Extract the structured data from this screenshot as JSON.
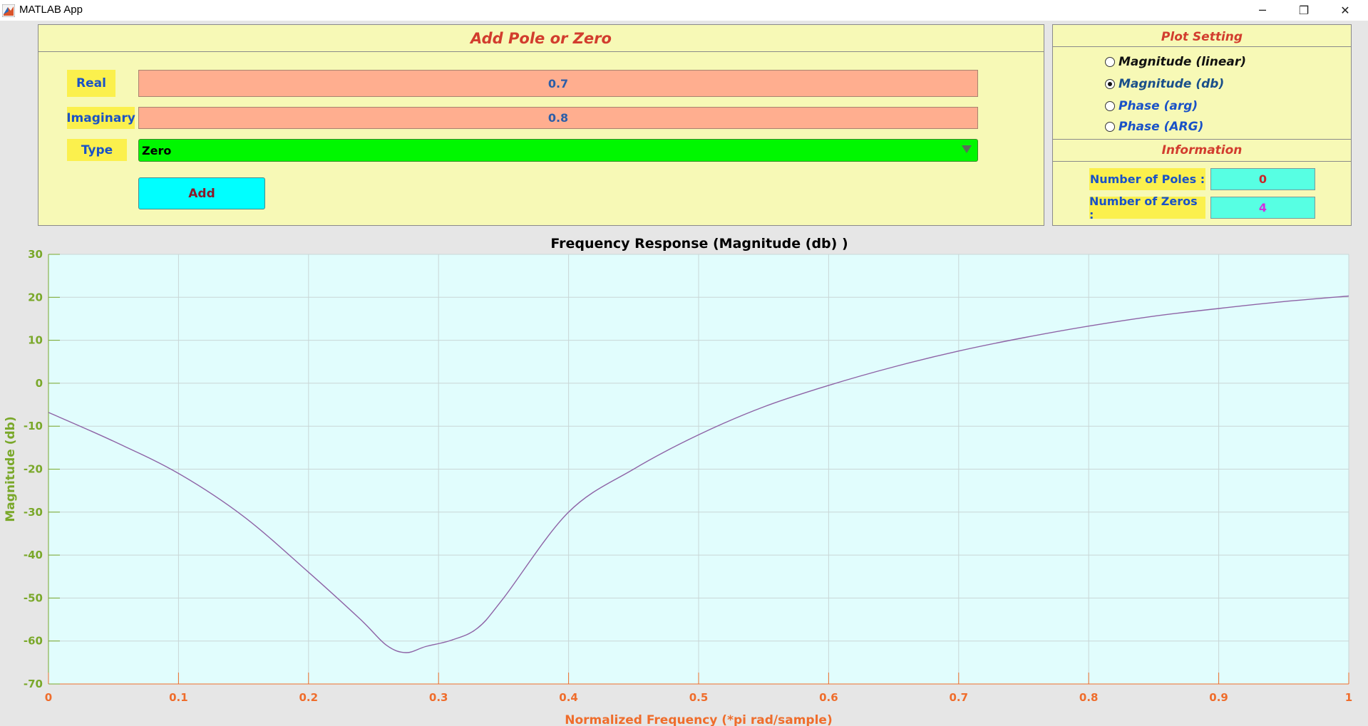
{
  "window": {
    "title": "MATLAB App",
    "minimize_glyph": "─",
    "maximize_glyph": "❐",
    "close_glyph": "✕"
  },
  "add_panel": {
    "title": "Add Pole or Zero",
    "real_label": "Real",
    "real_value": "0.7",
    "imag_label": "Imaginary",
    "imag_value": "0.8",
    "type_label": "Type",
    "type_value": "Zero",
    "add_button": "Add"
  },
  "plot_setting": {
    "title": "Plot Setting",
    "options": [
      {
        "label": "Magnitude (linear)",
        "selected": false
      },
      {
        "label": "Magnitude (db)",
        "selected": true
      },
      {
        "label": "Phase (arg)",
        "selected": false
      },
      {
        "label": "Phase (ARG)",
        "selected": false
      }
    ]
  },
  "information": {
    "title": "Information",
    "poles_label": "Number of Poles :",
    "poles_value": "0",
    "zeros_label": "Number of Zeros :",
    "zeros_value": "4"
  },
  "colors": {
    "plot_bg": "#e1fdfd",
    "line": "#8e63a6",
    "grid": "#c9d6d6",
    "ytick": "#7aa82a",
    "xtick": "#ef6d2c"
  },
  "chart_data": {
    "type": "line",
    "title": "Frequency Response (Magnitude (db) )",
    "xlabel": "Normalized Frequency (*pi rad/sample)",
    "ylabel": "Magnitude (db)",
    "xlim": [
      0,
      1
    ],
    "ylim": [
      -70,
      30
    ],
    "grid": true,
    "xticks": [
      "0",
      "0.1",
      "0.2",
      "0.3",
      "0.4",
      "0.5",
      "0.6",
      "0.7",
      "0.8",
      "0.9",
      "1"
    ],
    "yticks": [
      "30",
      "20",
      "10",
      "0",
      "-10",
      "-20",
      "-30",
      "-40",
      "-50",
      "-60",
      "-70"
    ],
    "series": [
      {
        "x": [
          0,
          0.05,
          0.1,
          0.15,
          0.2,
          0.24,
          0.26,
          0.275,
          0.29,
          0.31,
          0.33,
          0.35,
          0.4,
          0.45,
          0.5,
          0.55,
          0.6,
          0.65,
          0.7,
          0.75,
          0.8,
          0.85,
          0.9,
          0.95,
          1.0
        ],
        "y": [
          -6.8,
          -13.5,
          -21,
          -31,
          -44,
          -55,
          -61,
          -62.7,
          -61.3,
          -59.8,
          -57,
          -50,
          -30,
          -20,
          -12,
          -5.5,
          -0.5,
          3.8,
          7.5,
          10.6,
          13.3,
          15.6,
          17.4,
          19,
          20.3
        ]
      }
    ]
  }
}
